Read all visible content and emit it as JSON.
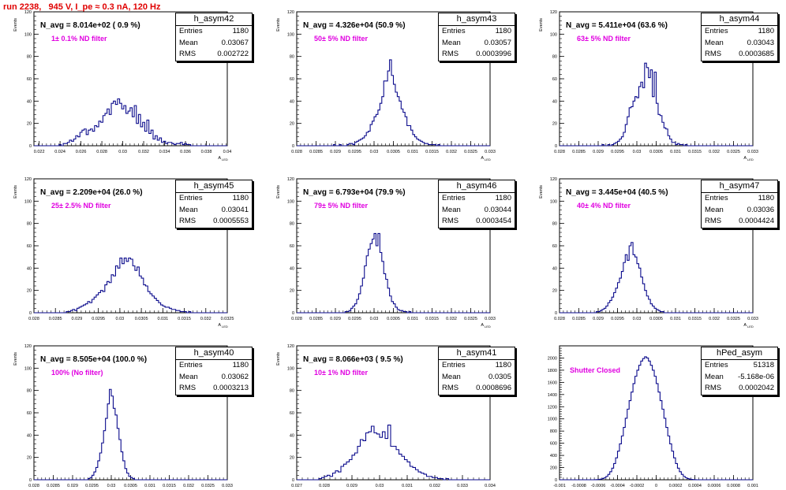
{
  "header": {
    "title": "run 2238,   945 V, I_pe ≈ 0.3 nA, 120 Hz"
  },
  "chart_data": [
    {
      "type": "histogram",
      "stats": {
        "name": "h_asym42",
        "entries": "1180",
        "mean": "0.03067",
        "rms": "0.002722"
      },
      "navg": "N_avg = 8.014e+02 ( 0.9 %)",
      "filter": "1± 0.1% ND filter",
      "ylabel": "Events",
      "xlabel": "A",
      "xlabel_sub": "LED",
      "xlim": [
        0.0215,
        0.04
      ],
      "ylim": [
        0,
        120
      ],
      "xticks": [
        "0.022",
        "0.024",
        "0.026",
        "0.028",
        "0.03",
        "0.032",
        "0.034",
        "0.036",
        "0.038",
        "0.04"
      ],
      "yticks": [
        0,
        20,
        40,
        60,
        80,
        100,
        120
      ],
      "bins": {
        "lo": 0.0215,
        "width": 0.0002,
        "counts": [
          0,
          0,
          0,
          0,
          0,
          0,
          0,
          0,
          0,
          0,
          0,
          0,
          1,
          0,
          2,
          2,
          3,
          5,
          4,
          6,
          9,
          8,
          12,
          14,
          15,
          10,
          14,
          15,
          13,
          18,
          17,
          22,
          21,
          27,
          29,
          33,
          28,
          38,
          40,
          37,
          42,
          38,
          33,
          36,
          29,
          31,
          34,
          26,
          36,
          20,
          28,
          17,
          21,
          13,
          23,
          11,
          14,
          6,
          9,
          5,
          7,
          3,
          4,
          2,
          3,
          3,
          2,
          1,
          2,
          2,
          3,
          1,
          2,
          1,
          1,
          0,
          0,
          0,
          0,
          0,
          0,
          0,
          0,
          0,
          0,
          0,
          0,
          0,
          0,
          0,
          0,
          0,
          0
        ]
      }
    },
    {
      "type": "histogram",
      "stats": {
        "name": "h_asym43",
        "entries": "1180",
        "mean": "0.03057",
        "rms": "0.0003996"
      },
      "navg": "N_avg = 4.326e+04 (50.9 %)",
      "filter": "50± 5% ND filter",
      "ylabel": "Events",
      "xlabel": "A",
      "xlabel_sub": "LED",
      "xlim": [
        0.028,
        0.033
      ],
      "ylim": [
        0,
        120
      ],
      "xticks": [
        "0.028",
        "0.0285",
        "0.029",
        "0.0295",
        "0.03",
        "0.0305",
        "0.031",
        "0.0315",
        "0.032",
        "0.0325",
        "0.033"
      ],
      "yticks": [
        0,
        20,
        40,
        60,
        80,
        100,
        120
      ],
      "bins": {
        "lo": 0.028,
        "width": 5e-05,
        "counts": [
          0,
          0,
          0,
          0,
          0,
          0,
          0,
          0,
          0,
          0,
          0,
          0,
          0,
          0,
          0,
          0,
          0,
          0,
          0,
          1,
          0,
          0,
          1,
          0,
          0,
          0,
          1,
          2,
          2,
          1,
          3,
          4,
          5,
          6,
          7,
          9,
          12,
          13,
          19,
          22,
          26,
          28,
          32,
          38,
          44,
          58,
          58,
          67,
          77,
          63,
          55,
          48,
          44,
          40,
          33,
          30,
          26,
          18,
          18,
          14,
          10,
          8,
          6,
          5,
          4,
          3,
          2,
          2,
          1,
          1,
          1,
          1,
          0,
          1,
          0,
          0,
          0,
          0,
          0,
          0,
          0,
          0,
          0,
          0,
          0,
          0,
          0,
          0,
          0,
          0,
          0,
          0,
          0,
          0,
          0,
          0,
          0,
          0,
          0,
          0
        ]
      }
    },
    {
      "type": "histogram",
      "stats": {
        "name": "h_asym44",
        "entries": "1180",
        "mean": "0.03043",
        "rms": "0.0003685"
      },
      "navg": "N_avg = 5.411e+04 (63.6 %)",
      "filter": "63± 5% ND filter",
      "ylabel": "Events",
      "xlabel": "A",
      "xlabel_sub": "LED",
      "xlim": [
        0.028,
        0.033
      ],
      "ylim": [
        0,
        120
      ],
      "xticks": [
        "0.028",
        "0.0285",
        "0.029",
        "0.0295",
        "0.03",
        "0.0305",
        "0.031",
        "0.0315",
        "0.032",
        "0.0325",
        "0.033"
      ],
      "yticks": [
        0,
        20,
        40,
        60,
        80,
        100,
        120
      ],
      "bins": {
        "lo": 0.028,
        "width": 5e-05,
        "counts": [
          0,
          0,
          0,
          0,
          0,
          0,
          0,
          0,
          0,
          0,
          0,
          0,
          0,
          0,
          0,
          0,
          0,
          0,
          0,
          0,
          0,
          0,
          1,
          0,
          0,
          1,
          0,
          1,
          2,
          3,
          4,
          6,
          8,
          12,
          19,
          26,
          34,
          35,
          40,
          44,
          43,
          53,
          57,
          52,
          74,
          70,
          61,
          68,
          44,
          66,
          38,
          28,
          27,
          21,
          16,
          15,
          9,
          6,
          3,
          3,
          1,
          2,
          1,
          1,
          0,
          1,
          0,
          0,
          0,
          0,
          0,
          0,
          0,
          0,
          0,
          0,
          0,
          0,
          0,
          0,
          0,
          0,
          0,
          0,
          0,
          0,
          0,
          0,
          0,
          0,
          0,
          0,
          0,
          0,
          0,
          0,
          0,
          0,
          0,
          0
        ]
      }
    },
    {
      "type": "histogram",
      "stats": {
        "name": "h_asym45",
        "entries": "1180",
        "mean": "0.03041",
        "rms": "0.0005553"
      },
      "navg": "N_avg = 2.209e+04 (26.0 %)",
      "filter": "25± 2.5% ND filter",
      "ylabel": "Events",
      "xlabel": "A",
      "xlabel_sub": "LED",
      "xlim": [
        0.028,
        0.0325
      ],
      "ylim": [
        0,
        120
      ],
      "xticks": [
        "0.028",
        "0.0285",
        "0.029",
        "0.0295",
        "0.03",
        "0.0305",
        "0.031",
        "0.0315",
        "0.032",
        "0.0325"
      ],
      "yticks": [
        0,
        20,
        40,
        60,
        80,
        100,
        120
      ],
      "bins": {
        "lo": 0.028,
        "width": 5e-05,
        "counts": [
          0,
          0,
          0,
          0,
          0,
          0,
          0,
          0,
          0,
          0,
          0,
          0,
          0,
          0,
          0,
          1,
          1,
          2,
          3,
          2,
          4,
          5,
          6,
          7,
          8,
          10,
          9,
          12,
          14,
          16,
          18,
          20,
          19,
          25,
          28,
          27,
          34,
          33,
          42,
          40,
          49,
          44,
          49,
          46,
          49,
          48,
          42,
          38,
          41,
          33,
          31,
          25,
          24,
          19,
          17,
          15,
          13,
          11,
          9,
          7,
          6,
          5,
          5,
          4,
          3,
          3,
          2,
          2,
          1,
          1,
          1,
          0,
          1,
          0,
          0,
          0,
          0,
          0,
          0,
          0,
          0,
          0,
          0,
          0,
          0,
          0,
          0,
          0,
          0,
          0
        ]
      }
    },
    {
      "type": "histogram",
      "stats": {
        "name": "h_asym46",
        "entries": "1180",
        "mean": "0.03044",
        "rms": "0.0003454"
      },
      "navg": "N_avg = 6.793e+04 (79.9 %)",
      "filter": "79± 5% ND filter",
      "ylabel": "Events",
      "xlabel": "A",
      "xlabel_sub": "LED",
      "xlim": [
        0.028,
        0.033
      ],
      "ylim": [
        0,
        120
      ],
      "xticks": [
        "0.028",
        "0.0285",
        "0.029",
        "0.0295",
        "0.03",
        "0.0305",
        "0.031",
        "0.0315",
        "0.032",
        "0.0325",
        "0.033"
      ],
      "yticks": [
        0,
        20,
        40,
        60,
        80,
        100,
        120
      ],
      "bins": {
        "lo": 0.028,
        "width": 5e-05,
        "counts": [
          0,
          0,
          0,
          0,
          0,
          0,
          0,
          0,
          0,
          0,
          0,
          0,
          0,
          0,
          0,
          0,
          0,
          0,
          0,
          0,
          0,
          0,
          0,
          0,
          0,
          1,
          1,
          2,
          4,
          6,
          8,
          12,
          17,
          24,
          31,
          42,
          51,
          57,
          62,
          66,
          71,
          60,
          71,
          54,
          46,
          35,
          30,
          22,
          15,
          10,
          8,
          5,
          3,
          2,
          2,
          1,
          1,
          0,
          1,
          0,
          0,
          0,
          0,
          0,
          0,
          0,
          0,
          0,
          0,
          0,
          0,
          0,
          0,
          0,
          0,
          0,
          0,
          0,
          0,
          0,
          0,
          0,
          0,
          0,
          0,
          0,
          0,
          0,
          0,
          0,
          0,
          0,
          0,
          0,
          0,
          0,
          0,
          0,
          0,
          0
        ]
      }
    },
    {
      "type": "histogram",
      "stats": {
        "name": "h_asym47",
        "entries": "1180",
        "mean": "0.03036",
        "rms": "0.0004424"
      },
      "navg": "N_avg = 3.445e+04 (40.5 %)",
      "filter": "40± 4% ND filter",
      "ylabel": "Events",
      "xlabel": "A",
      "xlabel_sub": "LED",
      "xlim": [
        0.028,
        0.033
      ],
      "ylim": [
        0,
        120
      ],
      "xticks": [
        "0.028",
        "0.0285",
        "0.029",
        "0.0295",
        "0.03",
        "0.0305",
        "0.031",
        "0.0315",
        "0.032",
        "0.0325",
        "0.033"
      ],
      "yticks": [
        0,
        20,
        40,
        60,
        80,
        100,
        120
      ],
      "bins": {
        "lo": 0.028,
        "width": 5e-05,
        "counts": [
          0,
          0,
          0,
          0,
          0,
          0,
          0,
          0,
          0,
          0,
          0,
          0,
          0,
          0,
          0,
          0,
          0,
          0,
          0,
          1,
          1,
          2,
          3,
          4,
          6,
          9,
          11,
          14,
          18,
          22,
          27,
          31,
          37,
          45,
          52,
          47,
          60,
          63,
          52,
          50,
          44,
          40,
          32,
          26,
          20,
          15,
          12,
          8,
          6,
          4,
          3,
          2,
          1,
          1,
          0,
          0,
          0,
          0,
          0,
          0,
          0,
          0,
          0,
          0,
          0,
          0,
          0,
          0,
          0,
          0,
          0,
          0,
          0,
          0,
          0,
          0,
          0,
          0,
          0,
          0,
          0,
          0,
          0,
          0,
          0,
          0,
          0,
          0,
          0,
          0,
          0,
          0,
          0,
          0,
          0,
          0,
          0,
          0,
          0,
          0
        ]
      }
    },
    {
      "type": "histogram",
      "stats": {
        "name": "h_asym40",
        "entries": "1180",
        "mean": "0.03062",
        "rms": "0.0003213"
      },
      "navg": "N_avg = 8.505e+04 (100.0 %)",
      "filter": "100% (No filter)",
      "ylabel": "Events",
      "xlabel": "A",
      "xlabel_sub": "LED",
      "xlim": [
        0.028,
        0.033
      ],
      "ylim": [
        0,
        120
      ],
      "xticks": [
        "0.028",
        "0.0285",
        "0.029",
        "0.0295",
        "0.03",
        "0.0305",
        "0.031",
        "0.0315",
        "0.032",
        "0.0325",
        "0.033"
      ],
      "yticks": [
        0,
        20,
        40,
        60,
        80,
        100,
        120
      ],
      "bins": {
        "lo": 0.028,
        "width": 5e-05,
        "counts": [
          0,
          0,
          0,
          0,
          0,
          0,
          0,
          0,
          0,
          0,
          0,
          0,
          0,
          0,
          0,
          0,
          0,
          0,
          0,
          0,
          0,
          0,
          0,
          0,
          0,
          0,
          0,
          0,
          1,
          2,
          4,
          7,
          11,
          17,
          24,
          33,
          44,
          55,
          68,
          81,
          75,
          64,
          58,
          46,
          36,
          25,
          17,
          10,
          6,
          3,
          2,
          1,
          0,
          0,
          0,
          0,
          0,
          0,
          0,
          0,
          0,
          0,
          0,
          0,
          0,
          0,
          0,
          0,
          0,
          0,
          0,
          0,
          0,
          0,
          0,
          0,
          0,
          0,
          0,
          0,
          0,
          0,
          0,
          0,
          0,
          0,
          0,
          0,
          0,
          0,
          0,
          0,
          0,
          0,
          0,
          0,
          0,
          0,
          0,
          0
        ]
      }
    },
    {
      "type": "histogram",
      "stats": {
        "name": "h_asym41",
        "entries": "1180",
        "mean": "0.0305",
        "rms": "0.0008696"
      },
      "navg": "N_avg = 8.066e+03 ( 9.5 %)",
      "filter": "10± 1% ND filter",
      "ylabel": "Events",
      "xlabel": "A",
      "xlabel_sub": "LED",
      "xlim": [
        0.027,
        0.034
      ],
      "ylim": [
        0,
        120
      ],
      "xticks": [
        "0.027",
        "0.028",
        "0.029",
        "0.03",
        "0.031",
        "0.032",
        "0.033",
        "0.034"
      ],
      "yticks": [
        0,
        20,
        40,
        60,
        80,
        100,
        120
      ],
      "bins": {
        "lo": 0.027,
        "width": 0.0001,
        "counts": [
          0,
          0,
          0,
          0,
          0,
          0,
          0,
          0,
          1,
          2,
          3,
          4,
          3,
          6,
          8,
          7,
          12,
          14,
          16,
          18,
          22,
          24,
          30,
          36,
          35,
          42,
          43,
          48,
          42,
          41,
          38,
          43,
          37,
          49,
          30,
          30,
          27,
          23,
          21,
          18,
          16,
          12,
          11,
          9,
          7,
          6,
          5,
          3,
          3,
          2,
          2,
          1,
          1,
          0,
          1,
          0,
          0,
          0,
          0,
          0,
          0,
          0,
          0,
          0,
          0,
          0,
          0,
          0,
          0,
          0
        ]
      }
    },
    {
      "type": "histogram",
      "stats": {
        "name": "hPed_asym",
        "entries": "51318",
        "mean": "-5.168e-06",
        "rms": "0.0002042"
      },
      "filter": "Shutter Closed",
      "xlabel": "",
      "xlabel_sub": "",
      "xlim": [
        -0.001,
        0.001
      ],
      "ylim": [
        0,
        2200
      ],
      "xticks": [
        "-0.001",
        "-0.0008",
        "-0.0006",
        "-0.0004",
        "-0.0002",
        "0",
        "0.0002",
        "0.0004",
        "0.0006",
        "0.0008",
        "0.001"
      ],
      "yticks": [
        0,
        200,
        400,
        600,
        800,
        1000,
        1200,
        1400,
        1600,
        1800,
        2000
      ],
      "bins": {
        "lo": -0.001,
        "width": 2e-05,
        "counts": [
          0,
          0,
          0,
          0,
          0,
          0,
          0,
          0,
          0,
          0,
          0,
          0,
          0,
          0,
          0,
          0,
          0,
          0,
          1,
          3,
          6,
          10,
          20,
          34,
          55,
          88,
          132,
          190,
          266,
          360,
          470,
          590,
          720,
          860,
          1010,
          1160,
          1300,
          1440,
          1580,
          1700,
          1800,
          1880,
          1950,
          1990,
          2020,
          2000,
          1950,
          1880,
          1800,
          1700,
          1580,
          1440,
          1300,
          1160,
          1010,
          860,
          720,
          590,
          470,
          360,
          266,
          190,
          132,
          88,
          55,
          34,
          20,
          10,
          6,
          3,
          1,
          0,
          0,
          0,
          0,
          0,
          0,
          0,
          0,
          0,
          0,
          0,
          0,
          0,
          0,
          0,
          0,
          0,
          0,
          0,
          0,
          0,
          0,
          0,
          0,
          0,
          0,
          0,
          0,
          0
        ]
      }
    }
  ]
}
